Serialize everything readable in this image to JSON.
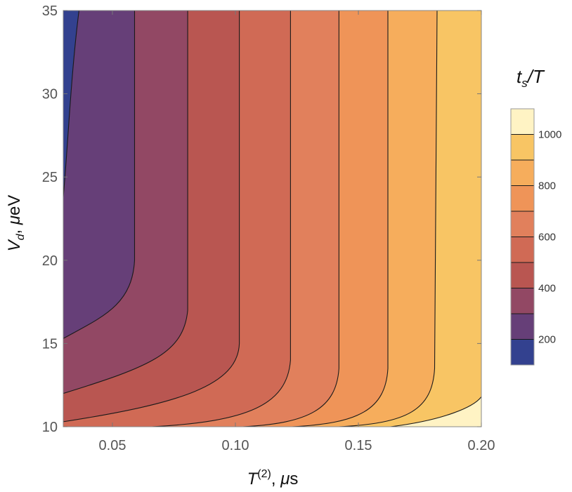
{
  "chart_data": {
    "type": "contour",
    "xlabel": "T^(2), μs",
    "ylabel": "V_d, μeV",
    "colorbar_title": "t_s/T",
    "xlim": [
      0.03,
      0.2
    ],
    "ylim": [
      10,
      35
    ],
    "x_ticks": [
      {
        "value": 0.05,
        "label": "0.05"
      },
      {
        "value": 0.1,
        "label": "0.10"
      },
      {
        "value": 0.15,
        "label": "0.15"
      },
      {
        "value": 0.2,
        "label": "0.20"
      }
    ],
    "y_ticks": [
      {
        "value": 10,
        "label": "10"
      },
      {
        "value": 15,
        "label": "15"
      },
      {
        "value": 20,
        "label": "20"
      },
      {
        "value": 25,
        "label": "25"
      },
      {
        "value": 30,
        "label": "30"
      },
      {
        "value": 35,
        "label": "35"
      }
    ],
    "contour_levels": [
      100,
      200,
      300,
      400,
      500,
      600,
      700,
      800,
      900,
      1000,
      1100
    ],
    "colorbar_ticks": [
      {
        "value": 200,
        "label": "200"
      },
      {
        "value": 400,
        "label": "400"
      },
      {
        "value": 600,
        "label": "600"
      },
      {
        "value": 800,
        "label": "800"
      },
      {
        "value": 1000,
        "label": "1000"
      }
    ],
    "colorbar_range": [
      100,
      1100
    ],
    "band_colors": [
      "#33418f",
      "#663f78",
      "#924864",
      "#b95651",
      "#d06a55",
      "#e1805c",
      "#ef9458",
      "#f6ad5c",
      "#f8c564",
      "#fff3c4"
    ],
    "contours_at_top": [
      {
        "level": 200,
        "x": 0.0364
      },
      {
        "level": 300,
        "x": 0.059
      },
      {
        "level": 400,
        "x": 0.0806
      },
      {
        "level": 500,
        "x": 0.1016
      },
      {
        "level": 600,
        "x": 0.1224
      },
      {
        "level": 700,
        "x": 0.1421
      },
      {
        "level": 800,
        "x": 0.162
      },
      {
        "level": 900,
        "x": 0.182
      }
    ],
    "contours_at_left": [
      {
        "level": 200,
        "y": 23.8
      },
      {
        "level": 300,
        "y": 15.3
      },
      {
        "level": 400,
        "y": 12.0
      },
      {
        "level": 500,
        "y": 10.3
      }
    ],
    "contours_at_bottom": [
      {
        "level": 600,
        "x": 0.066
      },
      {
        "level": 700,
        "x": 0.103
      },
      {
        "level": 800,
        "x": 0.123
      },
      {
        "level": 900,
        "x": 0.142
      },
      {
        "level": 1000,
        "x": 0.163
      }
    ],
    "contours_at_right": [
      {
        "level": 1000,
        "y": 11.8
      }
    ]
  }
}
